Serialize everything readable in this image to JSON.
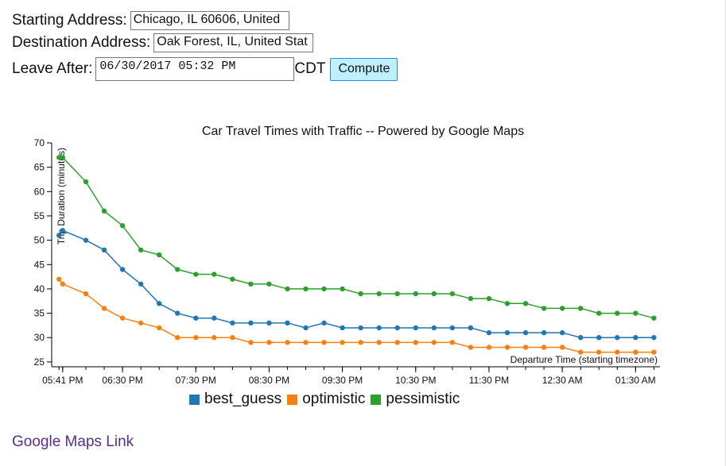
{
  "form": {
    "start_label": "Starting Address:",
    "start_value": "Chicago, IL 60606, United",
    "dest_label": "Destination Address:",
    "dest_value": "Oak Forest, IL, United Stat",
    "leave_label": "Leave After:",
    "leave_value": "06/30/2017 05:32 PM",
    "timezone": "CDT",
    "compute_label": "Compute"
  },
  "link": {
    "text": "Google Maps Link"
  },
  "chart_data": {
    "type": "line",
    "title": "Car Travel Times with Traffic -- Powered by Google Maps",
    "xlabel": "Departure Time (starting timezone)",
    "ylabel": "Trip Duration (minutes)",
    "ylim": [
      24,
      70
    ],
    "yticks": [
      25,
      30,
      35,
      40,
      45,
      50,
      55,
      60,
      65,
      70
    ],
    "xlim": [
      "17:32",
      "25:50"
    ],
    "xticks": [
      {
        "time": "17:41",
        "label": "05:41 PM"
      },
      {
        "time": "18:30",
        "label": "06:30 PM"
      },
      {
        "time": "19:30",
        "label": "07:30 PM"
      },
      {
        "time": "20:30",
        "label": "08:30 PM"
      },
      {
        "time": "21:30",
        "label": "09:30 PM"
      },
      {
        "time": "22:30",
        "label": "10:30 PM"
      },
      {
        "time": "23:30",
        "label": "11:30 PM"
      },
      {
        "time": "24:30",
        "label": "12:30 AM"
      },
      {
        "time": "25:30",
        "label": "01:30 AM"
      }
    ],
    "grid": false,
    "legend_position": "bottom",
    "x": [
      "17:38",
      "17:41",
      "18:00",
      "18:15",
      "18:30",
      "18:45",
      "19:00",
      "19:15",
      "19:30",
      "19:45",
      "20:00",
      "20:15",
      "20:30",
      "20:45",
      "21:00",
      "21:15",
      "21:30",
      "21:45",
      "22:00",
      "22:15",
      "22:30",
      "22:45",
      "23:00",
      "23:15",
      "23:30",
      "23:45",
      "24:00",
      "24:15",
      "24:30",
      "24:45",
      "25:00",
      "25:15",
      "25:30",
      "25:45"
    ],
    "series": [
      {
        "name": "best_guess",
        "color": "#1f77b4",
        "values": [
          51,
          52,
          50,
          48,
          44,
          41,
          37,
          35,
          34,
          34,
          33,
          33,
          33,
          33,
          32,
          33,
          32,
          32,
          32,
          32,
          32,
          32,
          32,
          32,
          31,
          31,
          31,
          31,
          31,
          30,
          30,
          30,
          30,
          30
        ]
      },
      {
        "name": "optimistic",
        "color": "#ff7f0e",
        "values": [
          42,
          41,
          39,
          36,
          34,
          33,
          32,
          30,
          30,
          30,
          30,
          29,
          29,
          29,
          29,
          29,
          29,
          29,
          29,
          29,
          29,
          29,
          29,
          28,
          28,
          28,
          28,
          28,
          28,
          27,
          27,
          27,
          27,
          27
        ]
      },
      {
        "name": "pessimistic",
        "color": "#2ca02c",
        "values": [
          67,
          67,
          62,
          56,
          53,
          48,
          47,
          44,
          43,
          43,
          42,
          41,
          41,
          40,
          40,
          40,
          40,
          39,
          39,
          39,
          39,
          39,
          39,
          38,
          38,
          37,
          37,
          36,
          36,
          36,
          35,
          35,
          35,
          34
        ]
      }
    ]
  }
}
